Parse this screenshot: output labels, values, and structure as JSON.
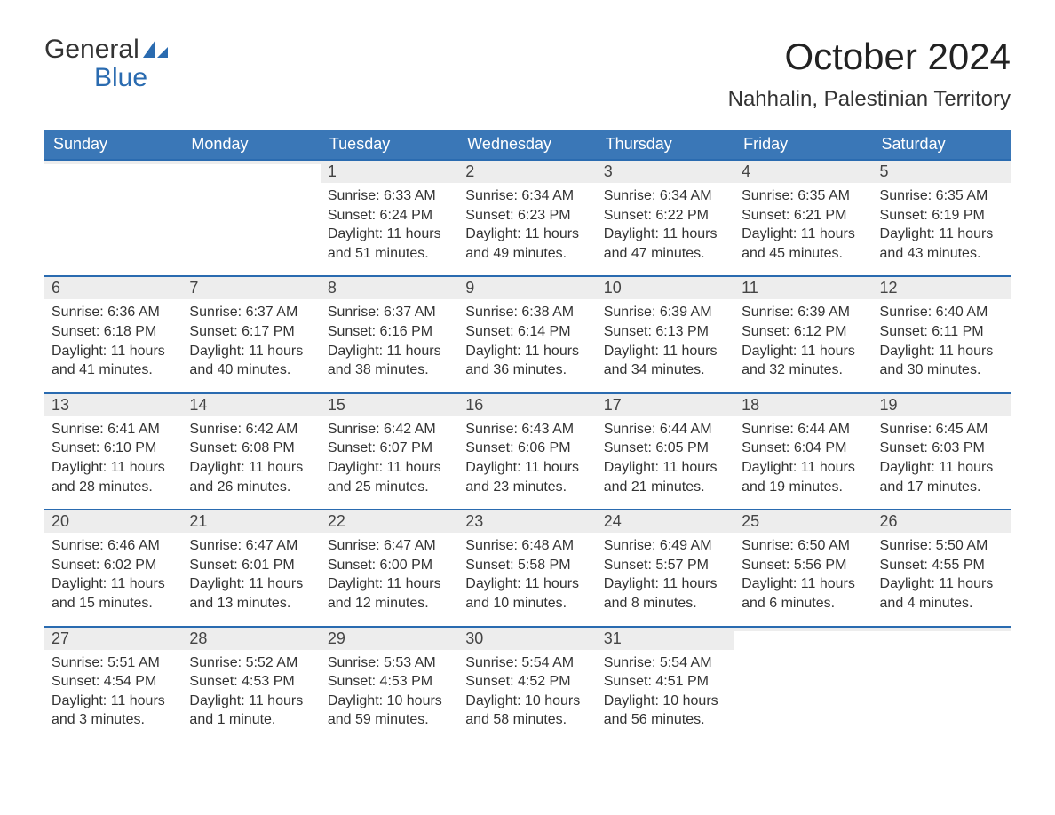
{
  "logo": {
    "word1": "General",
    "word2": "Blue"
  },
  "title": "October 2024",
  "location": "Nahhalin, Palestinian Territory",
  "colors": {
    "header_bg": "#3a77b7",
    "header_text": "#ffffff",
    "daynum_bg": "#ededed",
    "daynum_border": "#2a6bb0",
    "text": "#333333",
    "logo_blue": "#2a6bb0"
  },
  "weekdays": [
    "Sunday",
    "Monday",
    "Tuesday",
    "Wednesday",
    "Thursday",
    "Friday",
    "Saturday"
  ],
  "weeks": [
    [
      {
        "day": "",
        "sunrise": "",
        "sunset": "",
        "daylight1": "",
        "daylight2": ""
      },
      {
        "day": "",
        "sunrise": "",
        "sunset": "",
        "daylight1": "",
        "daylight2": ""
      },
      {
        "day": "1",
        "sunrise": "Sunrise: 6:33 AM",
        "sunset": "Sunset: 6:24 PM",
        "daylight1": "Daylight: 11 hours",
        "daylight2": "and 51 minutes."
      },
      {
        "day": "2",
        "sunrise": "Sunrise: 6:34 AM",
        "sunset": "Sunset: 6:23 PM",
        "daylight1": "Daylight: 11 hours",
        "daylight2": "and 49 minutes."
      },
      {
        "day": "3",
        "sunrise": "Sunrise: 6:34 AM",
        "sunset": "Sunset: 6:22 PM",
        "daylight1": "Daylight: 11 hours",
        "daylight2": "and 47 minutes."
      },
      {
        "day": "4",
        "sunrise": "Sunrise: 6:35 AM",
        "sunset": "Sunset: 6:21 PM",
        "daylight1": "Daylight: 11 hours",
        "daylight2": "and 45 minutes."
      },
      {
        "day": "5",
        "sunrise": "Sunrise: 6:35 AM",
        "sunset": "Sunset: 6:19 PM",
        "daylight1": "Daylight: 11 hours",
        "daylight2": "and 43 minutes."
      }
    ],
    [
      {
        "day": "6",
        "sunrise": "Sunrise: 6:36 AM",
        "sunset": "Sunset: 6:18 PM",
        "daylight1": "Daylight: 11 hours",
        "daylight2": "and 41 minutes."
      },
      {
        "day": "7",
        "sunrise": "Sunrise: 6:37 AM",
        "sunset": "Sunset: 6:17 PM",
        "daylight1": "Daylight: 11 hours",
        "daylight2": "and 40 minutes."
      },
      {
        "day": "8",
        "sunrise": "Sunrise: 6:37 AM",
        "sunset": "Sunset: 6:16 PM",
        "daylight1": "Daylight: 11 hours",
        "daylight2": "and 38 minutes."
      },
      {
        "day": "9",
        "sunrise": "Sunrise: 6:38 AM",
        "sunset": "Sunset: 6:14 PM",
        "daylight1": "Daylight: 11 hours",
        "daylight2": "and 36 minutes."
      },
      {
        "day": "10",
        "sunrise": "Sunrise: 6:39 AM",
        "sunset": "Sunset: 6:13 PM",
        "daylight1": "Daylight: 11 hours",
        "daylight2": "and 34 minutes."
      },
      {
        "day": "11",
        "sunrise": "Sunrise: 6:39 AM",
        "sunset": "Sunset: 6:12 PM",
        "daylight1": "Daylight: 11 hours",
        "daylight2": "and 32 minutes."
      },
      {
        "day": "12",
        "sunrise": "Sunrise: 6:40 AM",
        "sunset": "Sunset: 6:11 PM",
        "daylight1": "Daylight: 11 hours",
        "daylight2": "and 30 minutes."
      }
    ],
    [
      {
        "day": "13",
        "sunrise": "Sunrise: 6:41 AM",
        "sunset": "Sunset: 6:10 PM",
        "daylight1": "Daylight: 11 hours",
        "daylight2": "and 28 minutes."
      },
      {
        "day": "14",
        "sunrise": "Sunrise: 6:42 AM",
        "sunset": "Sunset: 6:08 PM",
        "daylight1": "Daylight: 11 hours",
        "daylight2": "and 26 minutes."
      },
      {
        "day": "15",
        "sunrise": "Sunrise: 6:42 AM",
        "sunset": "Sunset: 6:07 PM",
        "daylight1": "Daylight: 11 hours",
        "daylight2": "and 25 minutes."
      },
      {
        "day": "16",
        "sunrise": "Sunrise: 6:43 AM",
        "sunset": "Sunset: 6:06 PM",
        "daylight1": "Daylight: 11 hours",
        "daylight2": "and 23 minutes."
      },
      {
        "day": "17",
        "sunrise": "Sunrise: 6:44 AM",
        "sunset": "Sunset: 6:05 PM",
        "daylight1": "Daylight: 11 hours",
        "daylight2": "and 21 minutes."
      },
      {
        "day": "18",
        "sunrise": "Sunrise: 6:44 AM",
        "sunset": "Sunset: 6:04 PM",
        "daylight1": "Daylight: 11 hours",
        "daylight2": "and 19 minutes."
      },
      {
        "day": "19",
        "sunrise": "Sunrise: 6:45 AM",
        "sunset": "Sunset: 6:03 PM",
        "daylight1": "Daylight: 11 hours",
        "daylight2": "and 17 minutes."
      }
    ],
    [
      {
        "day": "20",
        "sunrise": "Sunrise: 6:46 AM",
        "sunset": "Sunset: 6:02 PM",
        "daylight1": "Daylight: 11 hours",
        "daylight2": "and 15 minutes."
      },
      {
        "day": "21",
        "sunrise": "Sunrise: 6:47 AM",
        "sunset": "Sunset: 6:01 PM",
        "daylight1": "Daylight: 11 hours",
        "daylight2": "and 13 minutes."
      },
      {
        "day": "22",
        "sunrise": "Sunrise: 6:47 AM",
        "sunset": "Sunset: 6:00 PM",
        "daylight1": "Daylight: 11 hours",
        "daylight2": "and 12 minutes."
      },
      {
        "day": "23",
        "sunrise": "Sunrise: 6:48 AM",
        "sunset": "Sunset: 5:58 PM",
        "daylight1": "Daylight: 11 hours",
        "daylight2": "and 10 minutes."
      },
      {
        "day": "24",
        "sunrise": "Sunrise: 6:49 AM",
        "sunset": "Sunset: 5:57 PM",
        "daylight1": "Daylight: 11 hours",
        "daylight2": "and 8 minutes."
      },
      {
        "day": "25",
        "sunrise": "Sunrise: 6:50 AM",
        "sunset": "Sunset: 5:56 PM",
        "daylight1": "Daylight: 11 hours",
        "daylight2": "and 6 minutes."
      },
      {
        "day": "26",
        "sunrise": "Sunrise: 5:50 AM",
        "sunset": "Sunset: 4:55 PM",
        "daylight1": "Daylight: 11 hours",
        "daylight2": "and 4 minutes."
      }
    ],
    [
      {
        "day": "27",
        "sunrise": "Sunrise: 5:51 AM",
        "sunset": "Sunset: 4:54 PM",
        "daylight1": "Daylight: 11 hours",
        "daylight2": "and 3 minutes."
      },
      {
        "day": "28",
        "sunrise": "Sunrise: 5:52 AM",
        "sunset": "Sunset: 4:53 PM",
        "daylight1": "Daylight: 11 hours",
        "daylight2": "and 1 minute."
      },
      {
        "day": "29",
        "sunrise": "Sunrise: 5:53 AM",
        "sunset": "Sunset: 4:53 PM",
        "daylight1": "Daylight: 10 hours",
        "daylight2": "and 59 minutes."
      },
      {
        "day": "30",
        "sunrise": "Sunrise: 5:54 AM",
        "sunset": "Sunset: 4:52 PM",
        "daylight1": "Daylight: 10 hours",
        "daylight2": "and 58 minutes."
      },
      {
        "day": "31",
        "sunrise": "Sunrise: 5:54 AM",
        "sunset": "Sunset: 4:51 PM",
        "daylight1": "Daylight: 10 hours",
        "daylight2": "and 56 minutes."
      },
      {
        "day": "",
        "sunrise": "",
        "sunset": "",
        "daylight1": "",
        "daylight2": ""
      },
      {
        "day": "",
        "sunrise": "",
        "sunset": "",
        "daylight1": "",
        "daylight2": ""
      }
    ]
  ]
}
